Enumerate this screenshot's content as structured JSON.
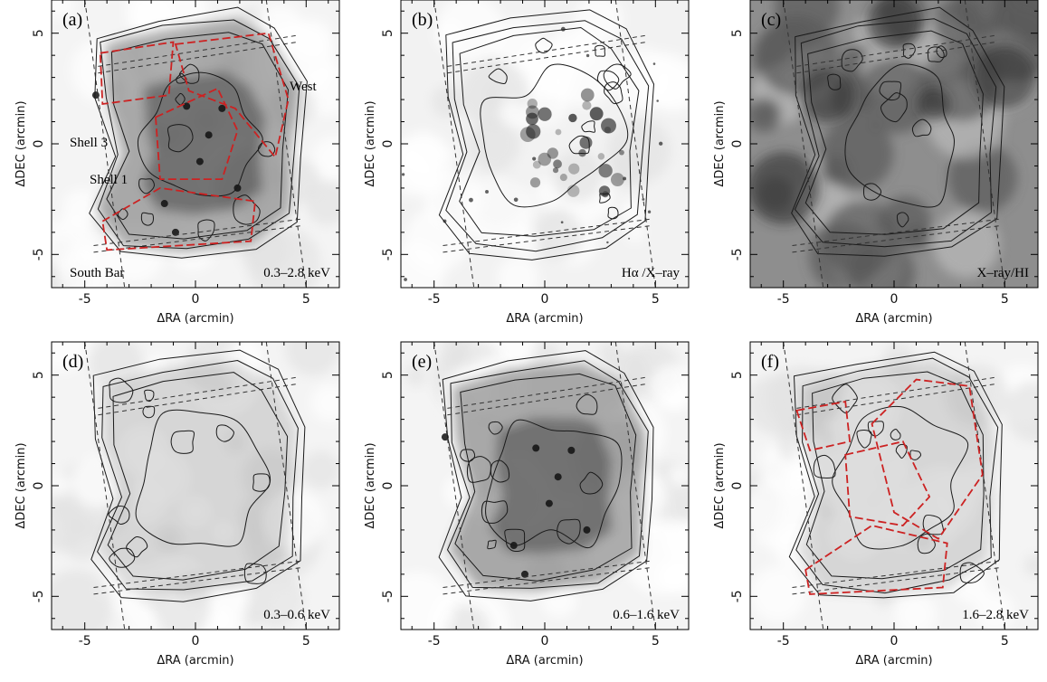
{
  "figure": {
    "panels": [
      {
        "id": "a",
        "letter": "(a)",
        "band_label": "0.3–2.8 keV",
        "annotations": [
          "West",
          "Shell 3",
          "Shell 1",
          "South Bar"
        ],
        "xlabel": "ΔRA (arcmin)",
        "ylabel": "ΔDEC (arcmin)",
        "background": "grey",
        "has_red_regions": true
      },
      {
        "id": "b",
        "letter": "(b)",
        "band_label": "Hα /X–ray",
        "annotations": [],
        "xlabel": "ΔRA (arcmin)",
        "ylabel": "ΔDEC (arcmin)",
        "background": "halpha",
        "has_red_regions": false
      },
      {
        "id": "c",
        "letter": "(c)",
        "band_label": "X–ray/HI",
        "annotations": [],
        "xlabel": "ΔRA (arcmin)",
        "ylabel": "ΔDEC (arcmin)",
        "background": "dark",
        "has_red_regions": false
      },
      {
        "id": "d",
        "letter": "(d)",
        "band_label": "0.3–0.6 keV",
        "annotations": [],
        "xlabel": "ΔRA (arcmin)",
        "ylabel": "ΔDEC (arcmin)",
        "background": "light",
        "has_red_regions": false
      },
      {
        "id": "e",
        "letter": "(e)",
        "band_label": "0.6–1.6 keV",
        "annotations": [],
        "xlabel": "ΔRA (arcmin)",
        "ylabel": "ΔDEC (arcmin)",
        "background": "grey",
        "has_red_regions": false
      },
      {
        "id": "f",
        "letter": "(f)",
        "band_label": "1.6–2.8 keV",
        "annotations": [],
        "xlabel": "ΔRA (arcmin)",
        "ylabel": "ΔDEC (arcmin)",
        "background": "light",
        "has_red_regions": true
      }
    ],
    "axes": {
      "xlim": [
        -6.5,
        6.5
      ],
      "ylim": [
        -6.5,
        6.5
      ],
      "xticks": [
        -5,
        0,
        5
      ],
      "yticks": [
        -5,
        0,
        5
      ]
    },
    "colors": {
      "contour": "#1a1a1a",
      "region": "#cc2222",
      "frame": "#000000"
    }
  }
}
